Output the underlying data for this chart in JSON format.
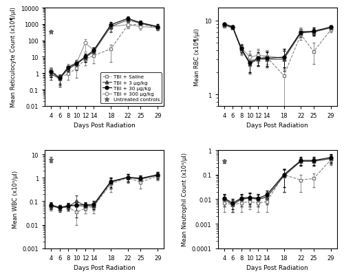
{
  "days": [
    4,
    6,
    8,
    10,
    12,
    14,
    18,
    22,
    25,
    29
  ],
  "reticulocyte": {
    "saline": [
      1.5,
      0.55,
      0.9,
      2.0,
      7.0,
      12.0,
      30.0,
      850.0,
      1000.0,
      600.0
    ],
    "3ug": [
      0.9,
      0.45,
      1.8,
      3.5,
      9.0,
      20.0,
      700.0,
      1800.0,
      1100.0,
      650.0
    ],
    "30ug": [
      1.2,
      0.5,
      2.2,
      4.0,
      10.0,
      25.0,
      900.0,
      2200.0,
      1200.0,
      700.0
    ],
    "300ug": [
      1.3,
      0.5,
      2.5,
      4.5,
      70.0,
      25.0,
      700.0,
      900.0,
      700.0,
      600.0
    ],
    "untreated": [
      350.0
    ],
    "saline_err": [
      0.8,
      0.3,
      0.5,
      1.5,
      4.0,
      8.0,
      25.0,
      300.0,
      350.0,
      200.0
    ],
    "3ug_err": [
      0.5,
      0.3,
      0.8,
      2.0,
      4.0,
      10.0,
      350.0,
      500.0,
      400.0,
      200.0
    ],
    "30ug_err": [
      0.6,
      0.3,
      0.9,
      2.0,
      5.0,
      12.0,
      400.0,
      600.0,
      400.0,
      250.0
    ],
    "300ug_err": [
      0.7,
      0.3,
      1.0,
      2.0,
      50.0,
      12.0,
      400.0,
      350.0,
      250.0,
      200.0
    ],
    "untreated_err": [
      50.0
    ],
    "ylabel": "Mean Reticulocyte Count (x10¶/µl)",
    "ylim": [
      0.01,
      10000
    ],
    "yticks": [
      0.01,
      0.1,
      1,
      10,
      100,
      1000,
      10000
    ]
  },
  "rbc": {
    "saline": [
      8.5,
      8.0,
      4.0,
      2.8,
      3.2,
      3.2,
      1.8,
      6.5,
      3.8,
      7.5
    ],
    "3ug": [
      8.7,
      8.1,
      4.1,
      2.6,
      3.0,
      3.0,
      3.0,
      6.8,
      7.0,
      8.0
    ],
    "30ug": [
      9.0,
      8.3,
      4.2,
      2.7,
      3.1,
      3.1,
      3.2,
      7.0,
      7.2,
      8.2
    ],
    "300ug": [
      8.8,
      8.2,
      4.3,
      3.2,
      3.4,
      3.3,
      3.1,
      7.2,
      7.1,
      8.0
    ],
    "saline_err": [
      0.4,
      0.3,
      0.6,
      0.8,
      0.8,
      0.8,
      1.2,
      1.0,
      1.2,
      0.5
    ],
    "3ug_err": [
      0.3,
      0.3,
      0.5,
      0.7,
      0.6,
      0.7,
      0.9,
      0.8,
      0.8,
      0.4
    ],
    "30ug_err": [
      0.3,
      0.3,
      0.5,
      0.7,
      0.6,
      0.7,
      0.9,
      0.8,
      0.8,
      0.4
    ],
    "300ug_err": [
      0.3,
      0.3,
      0.5,
      0.7,
      0.7,
      0.7,
      0.9,
      0.8,
      0.8,
      0.4
    ],
    "ylabel": "Mean RBC (x10¶/µl)",
    "ylim": [
      0.7,
      15
    ],
    "yticks": [
      1,
      10
    ]
  },
  "wbc": {
    "saline": [
      0.06,
      0.055,
      0.055,
      0.035,
      0.05,
      0.06,
      0.55,
      1.0,
      0.65,
      1.2
    ],
    "3ug": [
      0.065,
      0.05,
      0.06,
      0.1,
      0.065,
      0.065,
      0.65,
      1.05,
      0.9,
      1.3
    ],
    "30ug": [
      0.07,
      0.055,
      0.065,
      0.07,
      0.07,
      0.075,
      0.7,
      1.05,
      0.95,
      1.35
    ],
    "300ug": [
      0.065,
      0.055,
      0.06,
      0.065,
      0.06,
      0.065,
      0.65,
      1.02,
      0.85,
      1.25
    ],
    "untreated": [
      6.0
    ],
    "saline_err": [
      0.02,
      0.015,
      0.015,
      0.025,
      0.02,
      0.03,
      0.3,
      0.4,
      0.3,
      0.4
    ],
    "3ug_err": [
      0.02,
      0.015,
      0.02,
      0.08,
      0.02,
      0.02,
      0.3,
      0.35,
      0.3,
      0.4
    ],
    "30ug_err": [
      0.02,
      0.015,
      0.02,
      0.03,
      0.02,
      0.03,
      0.3,
      0.35,
      0.3,
      0.4
    ],
    "300ug_err": [
      0.02,
      0.015,
      0.02,
      0.025,
      0.02,
      0.025,
      0.3,
      0.35,
      0.3,
      0.4
    ],
    "untreated_err": [
      1.5
    ],
    "ylabel": "Mean WBC (x10³/µl)",
    "ylim": [
      0.001,
      15
    ],
    "yticks": [
      0.001,
      0.01,
      0.1,
      1,
      10
    ]
  },
  "neutrophil": {
    "saline": [
      0.007,
      0.006,
      0.007,
      0.008,
      0.007,
      0.008,
      0.1,
      0.06,
      0.07,
      0.4
    ],
    "3ug": [
      0.01,
      0.006,
      0.01,
      0.011,
      0.01,
      0.012,
      0.09,
      0.35,
      0.35,
      0.45
    ],
    "30ug": [
      0.011,
      0.007,
      0.011,
      0.012,
      0.011,
      0.015,
      0.1,
      0.38,
      0.38,
      0.5
    ],
    "300ug": [
      0.01,
      0.006,
      0.01,
      0.011,
      0.01,
      0.013,
      0.085,
      0.36,
      0.36,
      0.45
    ],
    "untreated": [
      0.35
    ],
    "saline_err": [
      0.004,
      0.003,
      0.004,
      0.004,
      0.004,
      0.005,
      0.08,
      0.04,
      0.04,
      0.15
    ],
    "3ug_err": [
      0.005,
      0.003,
      0.005,
      0.006,
      0.005,
      0.006,
      0.07,
      0.12,
      0.12,
      0.18
    ],
    "30ug_err": [
      0.005,
      0.003,
      0.005,
      0.006,
      0.005,
      0.007,
      0.07,
      0.13,
      0.13,
      0.18
    ],
    "300ug_err": [
      0.005,
      0.003,
      0.005,
      0.006,
      0.005,
      0.006,
      0.065,
      0.12,
      0.12,
      0.16
    ],
    "untreated_err": [
      0.06
    ],
    "ylabel": "Mean Neutrophil Count (x10³/µl)",
    "ylim": [
      0.0001,
      1.0
    ],
    "yticks": [
      0.0001,
      0.001,
      0.01,
      0.1,
      1
    ]
  },
  "xlabel": "Days Post Radiation",
  "days_untreated": [
    4
  ],
  "colors": {
    "saline": "#808080",
    "3ug": "#404040",
    "30ug": "#000000",
    "300ug": "#909090",
    "untreated": "#606060"
  },
  "legend_labels": [
    "TBI + Saline",
    "TBI + 3 µg/kg",
    "TBI + 30 µg/kg",
    "TBI + 300 µg/kg",
    "Untreated controls"
  ]
}
